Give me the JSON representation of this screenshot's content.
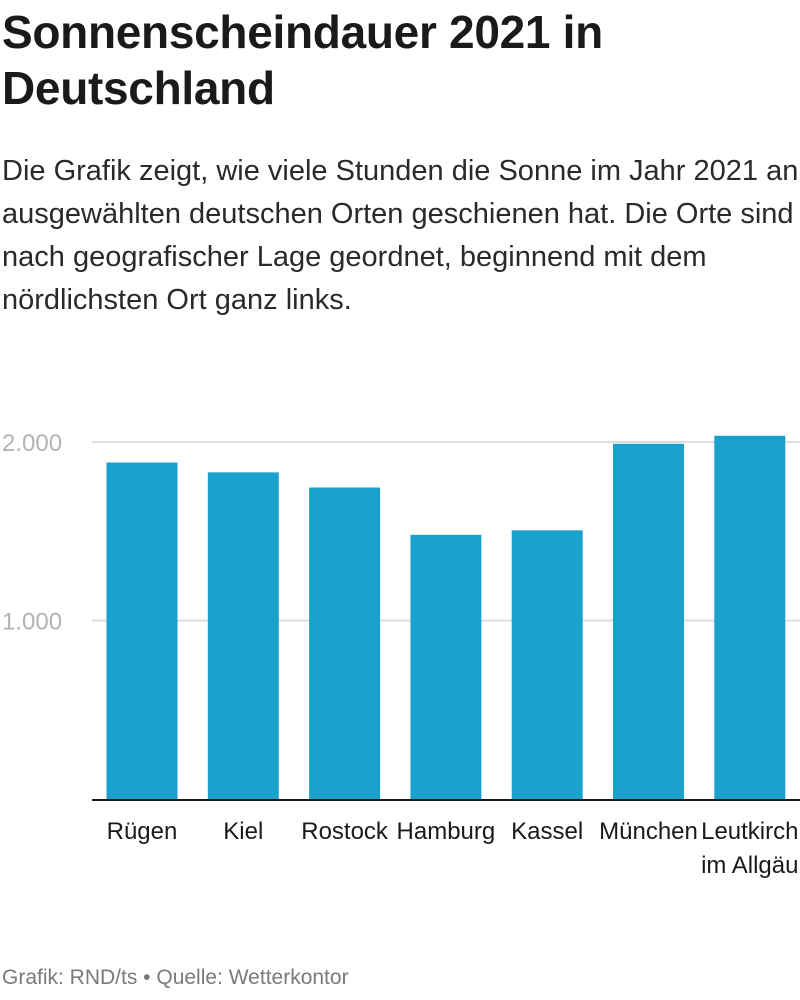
{
  "header": {
    "title": "Sonnenscheindauer 2021 in Deutschland",
    "subtitle": "Die Grafik zeigt, wie viele Stunden die Sonne im Jahr 2021 an ausgewählten deutschen Orten geschienen hat. Die Orte sind nach geografischer Lage geordnet, beginnend mit dem nördlichsten Ort ganz links."
  },
  "footer": {
    "text": "Grafik: RND/ts • Quelle: Wetterkontor"
  },
  "colors": {
    "bar": "#1ba2cc",
    "grid": "#dedede",
    "axis": "#1a1a1a",
    "tick_label": "#b3b3b3"
  },
  "chart_data": {
    "type": "bar",
    "title": "Sonnenscheindauer 2021 in Deutschland",
    "categories": [
      "Rügen",
      "Kiel",
      "Rostock",
      "Hamburg",
      "Kassel",
      "München",
      "Leutkirch im Allgäu"
    ],
    "values": [
      1885,
      1830,
      1745,
      1480,
      1505,
      1990,
      2035
    ],
    "yticks": [
      1000,
      2000
    ],
    "ytick_labels": [
      "1.000",
      "2.000"
    ],
    "ylim": [
      0,
      2000
    ],
    "grid": true,
    "xlabel": "",
    "ylabel": ""
  }
}
